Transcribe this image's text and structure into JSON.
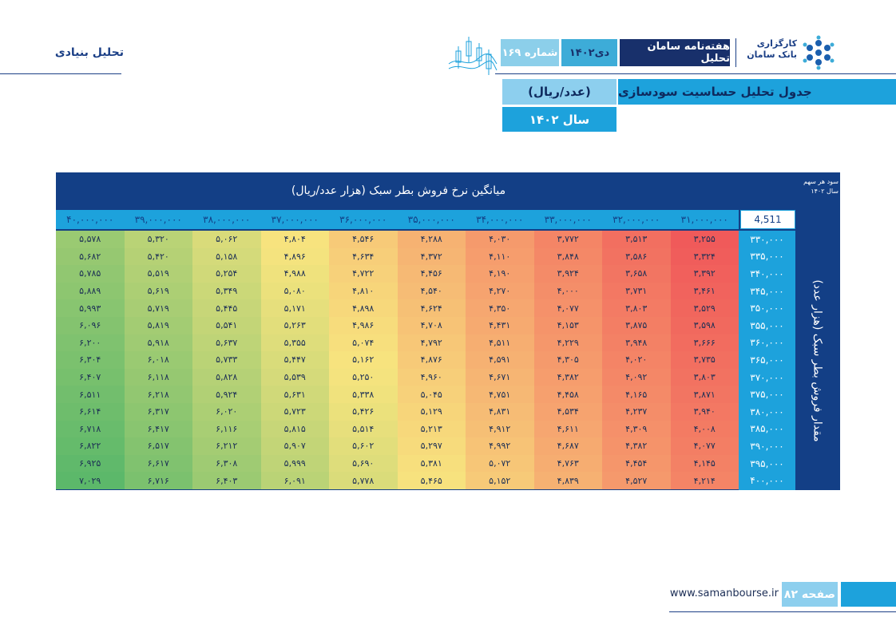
{
  "header": {
    "section_title": "تحلیل بنیادی",
    "brand_line1": "کارگزاری",
    "brand_line2": "بانک سامان",
    "weekly": "هفته‌نامه سامان تحلیل",
    "month": "دی۱۴۰۲",
    "issue": "شماره ۱۶۹"
  },
  "titles": {
    "main": "جدول تحلیل حساسیت سودسازی",
    "unit": "(عدد/ریال)",
    "year": "سال ۱۴۰۲"
  },
  "table": {
    "eps_label_line1": "سود هر سهم",
    "eps_label_line2": "سال ۱۴۰۲",
    "eps_value": "4,511",
    "price_heading": "میانگین نرخ فروش بطر سبک (هزار عدد/ریال)",
    "sales_heading": "مقدار فروش بطر سبک (هزار عدد)",
    "prices": [
      "۳۱,۰۰۰,۰۰۰",
      "۳۲,۰۰۰,۰۰۰",
      "۳۳,۰۰۰,۰۰۰",
      "۳۴,۰۰۰,۰۰۰",
      "۳۵,۰۰۰,۰۰۰",
      "۳۶,۰۰۰,۰۰۰",
      "۳۷,۰۰۰,۰۰۰",
      "۳۸,۰۰۰,۰۰۰",
      "۳۹,۰۰۰,۰۰۰",
      "۴۰,۰۰۰,۰۰۰"
    ],
    "sales": [
      "۳۳۰,۰۰۰",
      "۳۳۵,۰۰۰",
      "۳۴۰,۰۰۰",
      "۳۴۵,۰۰۰",
      "۳۵۰,۰۰۰",
      "۳۵۵,۰۰۰",
      "۳۶۰,۰۰۰",
      "۳۶۵,۰۰۰",
      "۳۷۰,۰۰۰",
      "۳۷۵,۰۰۰",
      "۳۸۰,۰۰۰",
      "۳۸۵,۰۰۰",
      "۳۹۰,۰۰۰",
      "۳۹۵,۰۰۰",
      "۴۰۰,۰۰۰"
    ],
    "rows": [
      [
        "۳,۲۵۵",
        "۳,۵۱۳",
        "۳,۷۷۲",
        "۴,۰۳۰",
        "۴,۲۸۸",
        "۴,۵۴۶",
        "۴,۸۰۴",
        "۵,۰۶۲",
        "۵,۳۲۰",
        "۵,۵۷۸"
      ],
      [
        "۳,۳۲۴",
        "۳,۵۸۶",
        "۳,۸۴۸",
        "۴,۱۱۰",
        "۴,۳۷۲",
        "۴,۶۳۴",
        "۴,۸۹۶",
        "۵,۱۵۸",
        "۵,۴۲۰",
        "۵,۶۸۲"
      ],
      [
        "۳,۳۹۲",
        "۳,۶۵۸",
        "۳,۹۲۴",
        "۴,۱۹۰",
        "۴,۴۵۶",
        "۴,۷۲۲",
        "۴,۹۸۸",
        "۵,۲۵۴",
        "۵,۵۱۹",
        "۵,۷۸۵"
      ],
      [
        "۳,۴۶۱",
        "۳,۷۳۱",
        "۴,۰۰۰",
        "۴,۲۷۰",
        "۴,۵۴۰",
        "۴,۸۱۰",
        "۵,۰۸۰",
        "۵,۳۴۹",
        "۵,۶۱۹",
        "۵,۸۸۹"
      ],
      [
        "۳,۵۲۹",
        "۳,۸۰۳",
        "۴,۰۷۷",
        "۴,۳۵۰",
        "۴,۶۲۴",
        "۴,۸۹۸",
        "۵,۱۷۱",
        "۵,۴۴۵",
        "۵,۷۱۹",
        "۵,۹۹۳"
      ],
      [
        "۳,۵۹۸",
        "۳,۸۷۵",
        "۴,۱۵۳",
        "۴,۴۳۱",
        "۴,۷۰۸",
        "۴,۹۸۶",
        "۵,۲۶۳",
        "۵,۵۴۱",
        "۵,۸۱۹",
        "۶,۰۹۶"
      ],
      [
        "۳,۶۶۶",
        "۳,۹۴۸",
        "۴,۲۲۹",
        "۴,۵۱۱",
        "۴,۷۹۲",
        "۵,۰۷۴",
        "۵,۳۵۵",
        "۵,۶۳۷",
        "۵,۹۱۸",
        "۶,۲۰۰"
      ],
      [
        "۳,۷۳۵",
        "۴,۰۲۰",
        "۴,۳۰۵",
        "۴,۵۹۱",
        "۴,۸۷۶",
        "۵,۱۶۲",
        "۵,۴۴۷",
        "۵,۷۳۳",
        "۶,۰۱۸",
        "۶,۳۰۴"
      ],
      [
        "۳,۸۰۳",
        "۴,۰۹۲",
        "۴,۳۸۲",
        "۴,۶۷۱",
        "۴,۹۶۰",
        "۵,۲۵۰",
        "۵,۵۳۹",
        "۵,۸۲۸",
        "۶,۱۱۸",
        "۶,۴۰۷"
      ],
      [
        "۳,۸۷۱",
        "۴,۱۶۵",
        "۴,۴۵۸",
        "۴,۷۵۱",
        "۵,۰۴۵",
        "۵,۳۳۸",
        "۵,۶۳۱",
        "۵,۹۲۴",
        "۶,۲۱۸",
        "۶,۵۱۱"
      ],
      [
        "۳,۹۴۰",
        "۴,۲۳۷",
        "۴,۵۳۴",
        "۴,۸۳۱",
        "۵,۱۲۹",
        "۵,۴۲۶",
        "۵,۷۲۳",
        "۶,۰۲۰",
        "۶,۳۱۷",
        "۶,۶۱۴"
      ],
      [
        "۴,۰۰۸",
        "۴,۳۰۹",
        "۴,۶۱۱",
        "۴,۹۱۲",
        "۵,۲۱۳",
        "۵,۵۱۴",
        "۵,۸۱۵",
        "۶,۱۱۶",
        "۶,۴۱۷",
        "۶,۷۱۸"
      ],
      [
        "۴,۰۷۷",
        "۴,۳۸۲",
        "۴,۶۸۷",
        "۴,۹۹۲",
        "۵,۲۹۷",
        "۵,۶۰۲",
        "۵,۹۰۷",
        "۶,۲۱۲",
        "۶,۵۱۷",
        "۶,۸۲۲"
      ],
      [
        "۴,۱۴۵",
        "۴,۴۵۴",
        "۴,۷۶۳",
        "۵,۰۷۲",
        "۵,۳۸۱",
        "۵,۶۹۰",
        "۵,۹۹۹",
        "۶,۳۰۸",
        "۶,۶۱۷",
        "۶,۹۲۵"
      ],
      [
        "۴,۲۱۴",
        "۴,۵۲۷",
        "۴,۸۳۹",
        "۵,۱۵۲",
        "۵,۴۶۵",
        "۵,۷۷۸",
        "۶,۰۹۱",
        "۶,۴۰۳",
        "۶,۷۱۶",
        "۷,۰۲۹"
      ]
    ]
  },
  "footer": {
    "url": "www.samanbourse.ir",
    "page": "صفحه ۸۲"
  },
  "colors": {
    "navy": "#133f86",
    "cyan": "#1da2dc",
    "light_cyan": "#8dcfee",
    "heat_low": "#f05a5a",
    "heat_mid": "#f6e67a",
    "heat_high": "#5cb86a"
  }
}
